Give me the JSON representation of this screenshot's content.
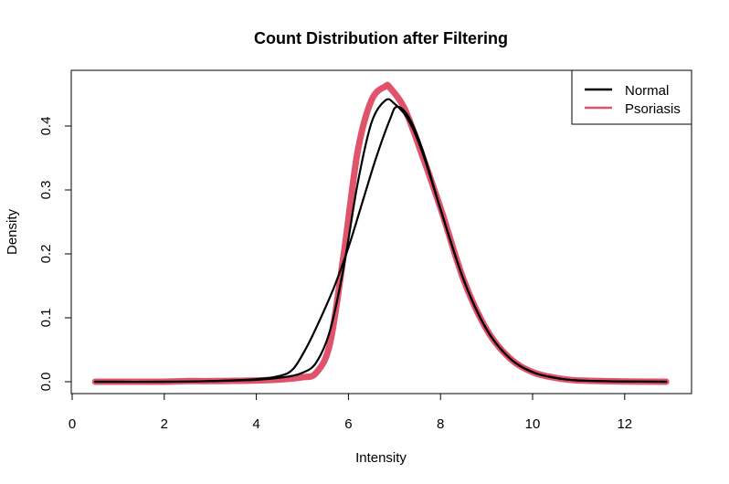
{
  "chart_data": {
    "type": "line",
    "title": "Count Distribution after Filtering",
    "xlabel": "Intensity",
    "ylabel": "Density",
    "xlim": [
      0,
      13
    ],
    "ylim": [
      0,
      0.46
    ],
    "x_ticks": [
      "0",
      "2",
      "4",
      "6",
      "8",
      "10",
      "12"
    ],
    "y_ticks": [
      "0.0",
      "0.1",
      "0.2",
      "0.3",
      "0.4"
    ],
    "grid": false,
    "legend": {
      "position": "top-right",
      "entries": [
        {
          "label": "Normal",
          "color": "#000000"
        },
        {
          "label": "Psoriasis",
          "color": "#DF536B"
        }
      ]
    },
    "series": [
      {
        "name": "Normal",
        "color": "#000000",
        "x": [
          0.5,
          2.0,
          3.0,
          4.0,
          4.6,
          5.0,
          5.3,
          5.6,
          5.9,
          6.2,
          6.5,
          6.8,
          7.0,
          7.3,
          7.6,
          8.0,
          8.5,
          9.0,
          9.5,
          10.0,
          10.5,
          11.0,
          12.0,
          12.9
        ],
        "y": [
          0.0,
          0.0,
          0.001,
          0.003,
          0.007,
          0.014,
          0.03,
          0.08,
          0.18,
          0.31,
          0.405,
          0.44,
          0.435,
          0.41,
          0.36,
          0.27,
          0.16,
          0.082,
          0.037,
          0.015,
          0.006,
          0.002,
          0.0004,
          0.0
        ]
      },
      {
        "name": "Normal",
        "color": "#000000",
        "x": [
          0.5,
          2.0,
          3.0,
          4.0,
          4.5,
          4.8,
          5.1,
          5.4,
          5.7,
          6.0,
          6.3,
          6.6,
          6.9,
          7.05,
          7.3,
          7.6,
          8.0,
          8.5,
          9.0,
          9.5,
          10.0,
          10.5,
          11.0,
          12.0,
          12.9
        ],
        "y": [
          0.0,
          0.0,
          0.001,
          0.004,
          0.009,
          0.02,
          0.055,
          0.1,
          0.15,
          0.21,
          0.28,
          0.35,
          0.41,
          0.43,
          0.415,
          0.365,
          0.27,
          0.16,
          0.082,
          0.037,
          0.015,
          0.006,
          0.002,
          0.0004,
          0.0
        ]
      },
      {
        "name": "Psoriasis",
        "color": "#DF536B",
        "x": [
          0.5,
          2.0,
          2.5,
          3.0,
          4.0,
          4.6,
          5.0,
          5.3,
          5.6,
          5.9,
          6.2,
          6.5,
          6.8,
          6.9,
          7.2,
          7.5,
          8.0,
          8.5,
          9.0,
          9.5,
          10.0,
          10.5,
          11.0,
          12.0,
          12.9
        ],
        "y": [
          0.0,
          0.0,
          0.001,
          0.001,
          0.002,
          0.004,
          0.007,
          0.014,
          0.06,
          0.2,
          0.36,
          0.44,
          0.462,
          0.46,
          0.43,
          0.375,
          0.272,
          0.16,
          0.082,
          0.037,
          0.015,
          0.006,
          0.002,
          0.0004,
          0.0
        ]
      }
    ]
  }
}
